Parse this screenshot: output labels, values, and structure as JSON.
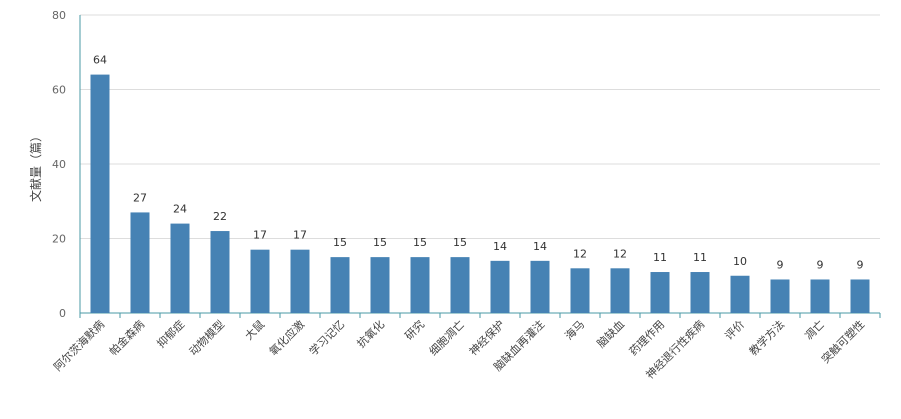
{
  "chart_data": {
    "type": "bar",
    "title": "",
    "xlabel": "",
    "ylabel": "文献量（篇）",
    "ylim": [
      0,
      80
    ],
    "yticks": [
      0,
      20,
      40,
      60,
      80
    ],
    "grid": true,
    "bar_color": "#4682B4",
    "categories": [
      "阿尔茨海默病",
      "帕金森病",
      "抑郁症",
      "动物模型",
      "大鼠",
      "氧化应激",
      "学习记忆",
      "抗氧化",
      "研究",
      "细胞凋亡",
      "神经保护",
      "脑缺血再灌注",
      "海马",
      "脑缺血",
      "药理作用",
      "神经退行性疾病",
      "评价",
      "教学方法",
      "凋亡",
      "突触可塑性"
    ],
    "values": [
      64,
      27,
      24,
      22,
      17,
      17,
      15,
      15,
      15,
      15,
      14,
      14,
      12,
      12,
      11,
      11,
      10,
      9,
      9,
      9
    ]
  }
}
